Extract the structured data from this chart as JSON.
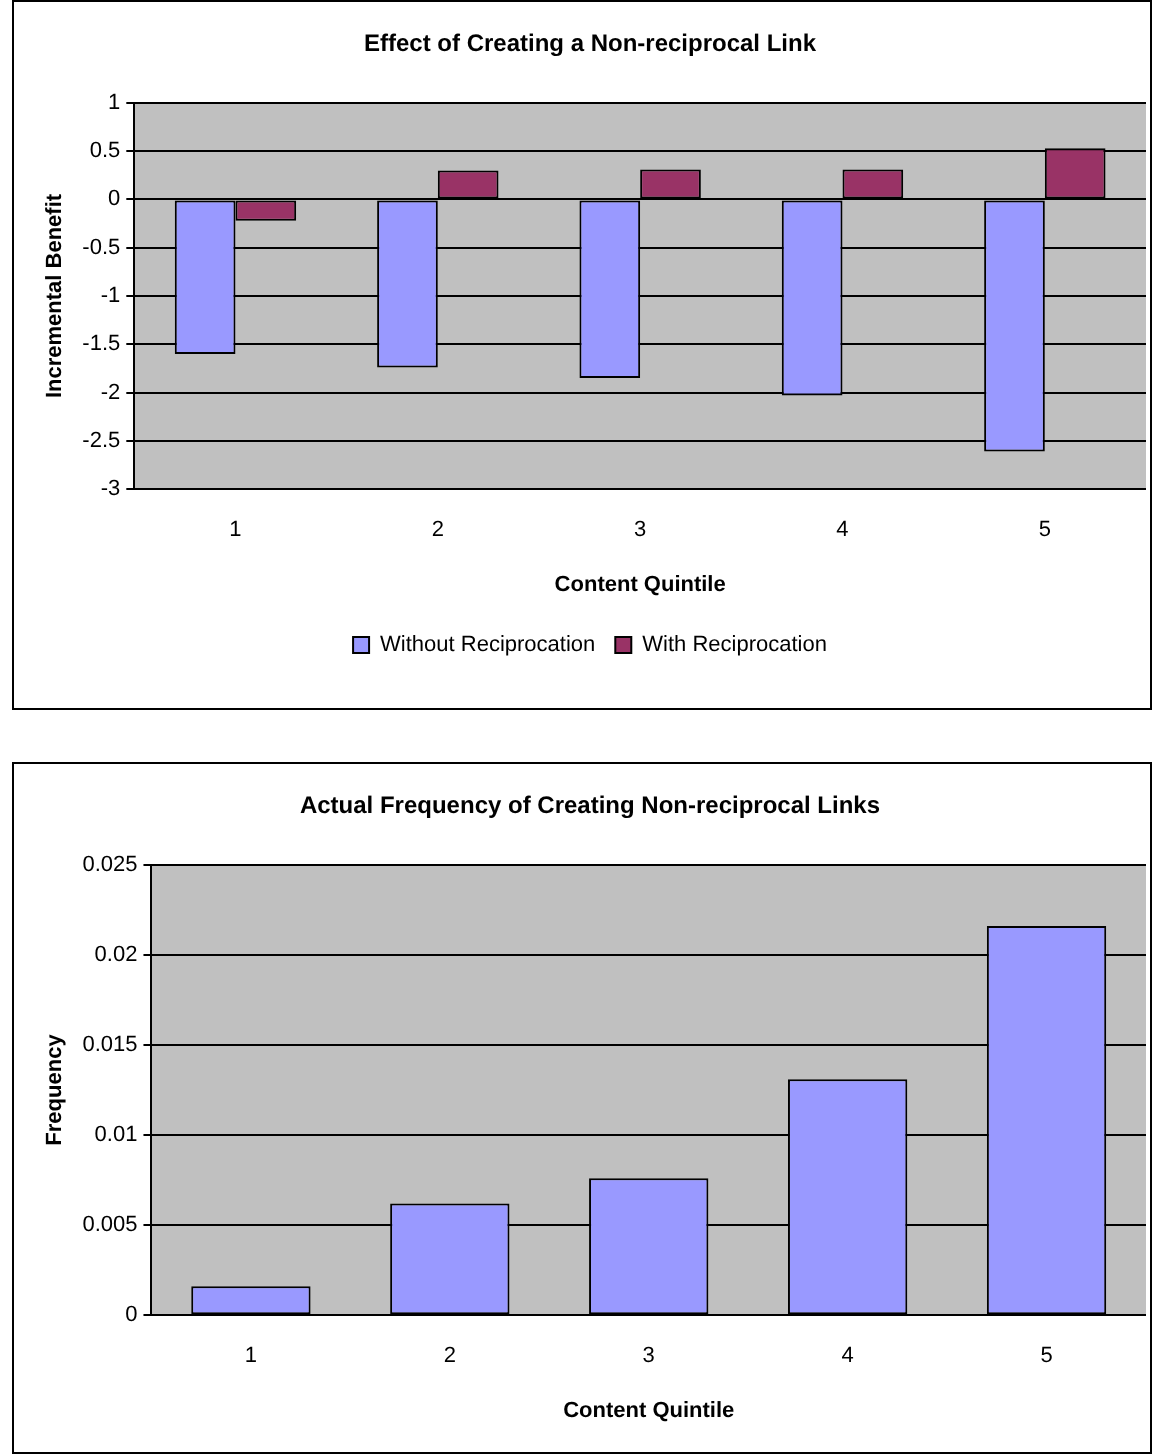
{
  "chart_data": [
    {
      "type": "bar",
      "title": "Effect of Creating a Non-reciprocal Link",
      "xlabel": "Content Quintile",
      "ylabel": "Incremental Benefit",
      "categories": [
        "1",
        "2",
        "3",
        "4",
        "5"
      ],
      "series": [
        {
          "name": "Without Reciprocation",
          "color": "#9999ff",
          "values": [
            -1.6,
            -1.74,
            -1.85,
            -2.03,
            -2.61
          ]
        },
        {
          "name": "With Reciprocation",
          "color": "#993366",
          "values": [
            -0.22,
            0.3,
            0.31,
            0.31,
            0.53
          ]
        }
      ],
      "ylim": [
        -3,
        1
      ],
      "yticks": [
        -3,
        -2.5,
        -2,
        -1.5,
        -1,
        -0.5,
        0,
        0.5,
        1
      ],
      "grid": "y",
      "legend": "bottom"
    },
    {
      "type": "bar",
      "title": "Actual Frequency of Creating Non-reciprocal Links",
      "xlabel": "Content Quintile",
      "ylabel": "Frequency",
      "categories": [
        "1",
        "2",
        "3",
        "4",
        "5"
      ],
      "series": [
        {
          "color": "#9999ff",
          "values": [
            0.0016,
            0.0062,
            0.0076,
            0.0131,
            0.0216
          ]
        }
      ],
      "ylim": [
        0,
        0.025
      ],
      "yticks": [
        0,
        0.005,
        0.01,
        0.015,
        0.02,
        0.025
      ],
      "grid": "y"
    }
  ]
}
